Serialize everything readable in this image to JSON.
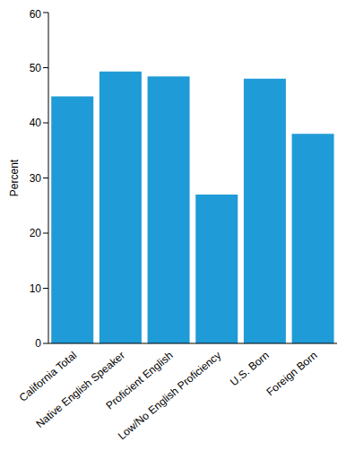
{
  "chart_data": {
    "type": "bar",
    "y_label": "Percent",
    "categories": [
      "California Total",
      "Native English Speaker",
      "Proficient English",
      "Low/No English Proficiency",
      "U.S. Born",
      "Foreign Born"
    ],
    "values": [
      44.8,
      49.3,
      48.4,
      27.0,
      48.0,
      38.0
    ],
    "color": "#1f9bd7",
    "ylim": [
      0,
      60
    ],
    "yticks": [
      0,
      10,
      20,
      30,
      40,
      50,
      60
    ],
    "grid": false
  }
}
